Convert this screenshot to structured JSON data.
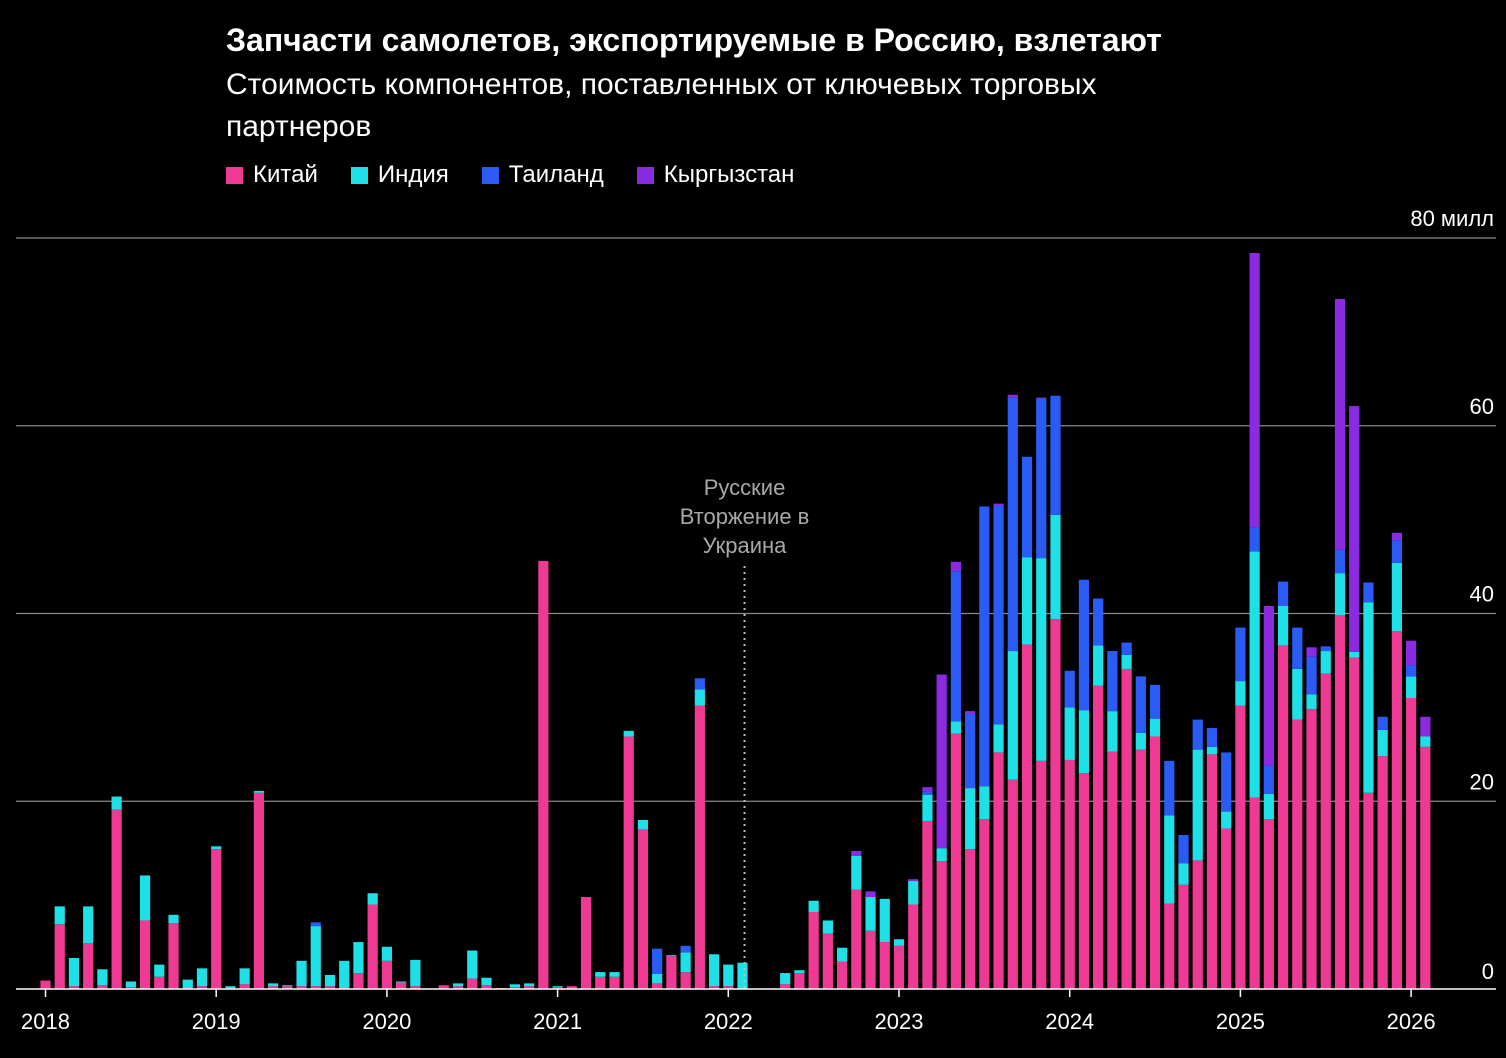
{
  "chart_data": {
    "type": "bar",
    "stacked": true,
    "title": "Запчасти самолетов, экспортируемые в Россию, взлетают",
    "subtitle": "Стоимость компонентов, поставленных от ключевых торговых партнеров",
    "ylabel": "",
    "xlabel": "",
    "ylim": [
      0,
      80
    ],
    "y_ticks": [
      {
        "value": 80,
        "label": "80 милл"
      },
      {
        "value": 60,
        "label": "60"
      },
      {
        "value": 40,
        "label": "40"
      },
      {
        "value": 20,
        "label": "20"
      },
      {
        "value": 0,
        "label": "0"
      }
    ],
    "x_ticks": [
      "2018",
      "2019",
      "2020",
      "2021",
      "2022",
      "2023",
      "2024",
      "2025",
      "2026"
    ],
    "grid": true,
    "legend_position": "top-left",
    "colors": {
      "china": "#ef3a93",
      "india": "#1ee0e6",
      "thailand": "#2a5cf5",
      "kyrgyzstan": "#8a2be2"
    },
    "annotation": {
      "lines": [
        "Русские",
        "Вторжение в",
        "Украина"
      ],
      "date": "2022-02"
    },
    "months": [
      "2018-01",
      "2018-02",
      "2018-03",
      "2018-04",
      "2018-05",
      "2018-06",
      "2018-07",
      "2018-08",
      "2018-09",
      "2018-10",
      "2018-11",
      "2018-12",
      "2019-01",
      "2019-02",
      "2019-03",
      "2019-04",
      "2019-05",
      "2019-06",
      "2019-07",
      "2019-08",
      "2019-09",
      "2019-10",
      "2019-11",
      "2019-12",
      "2020-01",
      "2020-02",
      "2020-03",
      "2020-04",
      "2020-05",
      "2020-06",
      "2020-07",
      "2020-08",
      "2020-09",
      "2020-10",
      "2020-11",
      "2020-12",
      "2021-01",
      "2021-02",
      "2021-03",
      "2021-04",
      "2021-05",
      "2021-06",
      "2021-07",
      "2021-08",
      "2021-09",
      "2021-10",
      "2021-11",
      "2021-12",
      "2022-01",
      "2022-02",
      "2022-03",
      "2022-04",
      "2022-05",
      "2022-06",
      "2022-07",
      "2022-08",
      "2022-09",
      "2022-10",
      "2022-11",
      "2022-12",
      "2023-01",
      "2023-02",
      "2023-03",
      "2023-04",
      "2023-05",
      "2023-06",
      "2023-07",
      "2023-08",
      "2023-09",
      "2023-10",
      "2023-11",
      "2023-12",
      "2024-01",
      "2024-02",
      "2024-03",
      "2024-04",
      "2024-05",
      "2024-06",
      "2024-07",
      "2024-08",
      "2024-09",
      "2024-10",
      "2024-11",
      "2024-12",
      "2025-01",
      "2025-02",
      "2025-03",
      "2025-04",
      "2025-05",
      "2025-06",
      "2025-07",
      "2025-08",
      "2025-09",
      "2025-10",
      "2025-11",
      "2025-12",
      "2026-01",
      "2026-02"
    ],
    "series": [
      {
        "name": "Китай",
        "color": "#ef3a93",
        "values": [
          0.9,
          6.9,
          0.3,
          4.9,
          0.4,
          19.1,
          0.2,
          7.3,
          1.3,
          7.0,
          0.1,
          0.3,
          14.9,
          0.1,
          0.5,
          20.9,
          0.3,
          0.3,
          0.3,
          0.3,
          0.3,
          0.1,
          1.7,
          9.0,
          3.0,
          0.7,
          0.3,
          0,
          0.4,
          0.3,
          1.1,
          0.4,
          0.1,
          0.2,
          0.3,
          45.6,
          0.2,
          0.3,
          9.8,
          1.3,
          1.3,
          26.9,
          17.0,
          0.6,
          3.5,
          1.8,
          30.2,
          0.3,
          0.3,
          0,
          0,
          0,
          0.5,
          1.7,
          8.2,
          5.9,
          2.9,
          10.6,
          6.2,
          5.0,
          4.6,
          9.0,
          17.9,
          13.6,
          27.2,
          14.9,
          18.1,
          25.2,
          22.3,
          36.7,
          24.3,
          39.4,
          24.4,
          23.0,
          32.3,
          25.3,
          34.1,
          25.5,
          26.9,
          9.1,
          11.1,
          13.7,
          25.0,
          17.1,
          30.2,
          20.4,
          18.1,
          36.6,
          28.7,
          29.8,
          33.6,
          39.8,
          35.3,
          20.9,
          24.8,
          38.1,
          31.0,
          25.8
        ]
      },
      {
        "name": "Индия",
        "color": "#1ee0e6",
        "values": [
          0,
          1.9,
          3.0,
          3.9,
          1.7,
          1.4,
          0.6,
          4.8,
          1.3,
          0.9,
          0.9,
          1.9,
          0.3,
          0.2,
          1.7,
          0.2,
          0.3,
          0.1,
          2.7,
          6.4,
          1.2,
          2.9,
          3.3,
          1.2,
          1.5,
          0.1,
          2.8,
          0,
          0,
          0.3,
          3.0,
          0.8,
          0,
          0.3,
          0.3,
          0,
          0.1,
          0,
          0,
          0.5,
          0.5,
          0.6,
          1.0,
          1.0,
          0.1,
          2.1,
          1.7,
          3.4,
          2.3,
          2.8,
          0,
          0,
          1.2,
          0.3,
          1.2,
          1.4,
          1.5,
          3.6,
          3.6,
          4.6,
          0.7,
          2.5,
          2.8,
          1.4,
          1.3,
          6.5,
          3.5,
          3.0,
          13.7,
          9.3,
          21.6,
          11.1,
          5.6,
          6.7,
          4.3,
          4.3,
          1.5,
          1.8,
          1.9,
          9.4,
          2.3,
          11.8,
          0.8,
          1.8,
          2.6,
          26.2,
          2.7,
          4.2,
          5.4,
          1.6,
          2.4,
          4.5,
          0.6,
          20.3,
          2.8,
          7.3,
          2.3,
          1.1
        ]
      },
      {
        "name": "Таиланд",
        "color": "#2a5cf5",
        "values": [
          0,
          0,
          0,
          0,
          0,
          0,
          0,
          0,
          0,
          0,
          0,
          0,
          0,
          0,
          0,
          0,
          0,
          0,
          0,
          0.4,
          0,
          0,
          0,
          0,
          0,
          0,
          0,
          0,
          0,
          0,
          0,
          0,
          0,
          0,
          0,
          0,
          0,
          0,
          0,
          0,
          0,
          0,
          0,
          2.7,
          0,
          0.7,
          1.2,
          0,
          0,
          0,
          0,
          0,
          0,
          0,
          0,
          0,
          0,
          0,
          0,
          0,
          0,
          0,
          0.3,
          0,
          16.0,
          7.9,
          29.8,
          23.3,
          27.0,
          10.7,
          17.0,
          12.7,
          3.9,
          13.9,
          5.0,
          6.4,
          1.3,
          6.0,
          3.6,
          5.8,
          3.0,
          3.2,
          2.0,
          6.3,
          5.7,
          2.6,
          3.0,
          2.6,
          4.4,
          4.0,
          0.5,
          2.5,
          0,
          2.1,
          1.4,
          2.4,
          1.2,
          0
        ]
      },
      {
        "name": "Кыргызстан",
        "color": "#8a2be2",
        "values": [
          0,
          0,
          0,
          0,
          0,
          0,
          0,
          0,
          0,
          0,
          0,
          0,
          0,
          0,
          0,
          0,
          0,
          0,
          0,
          0,
          0,
          0,
          0,
          0,
          0,
          0,
          0,
          0,
          0,
          0,
          0,
          0,
          0,
          0,
          0,
          0,
          0,
          0,
          0,
          0,
          0,
          0,
          0,
          0,
          0,
          0,
          0,
          0,
          0,
          0,
          0,
          0,
          0,
          0,
          0,
          0,
          0,
          0.5,
          0.6,
          0,
          0,
          0.2,
          0.5,
          18.5,
          1.0,
          0.3,
          0,
          0.2,
          0.3,
          0,
          0.1,
          0,
          0,
          0,
          0,
          0,
          0,
          0,
          0,
          0,
          0,
          0,
          0,
          0,
          0,
          29.2,
          17.0,
          0,
          0,
          1.0,
          0,
          26.7,
          26.2,
          0,
          0,
          0.8,
          2.6,
          2.1
        ]
      }
    ]
  }
}
